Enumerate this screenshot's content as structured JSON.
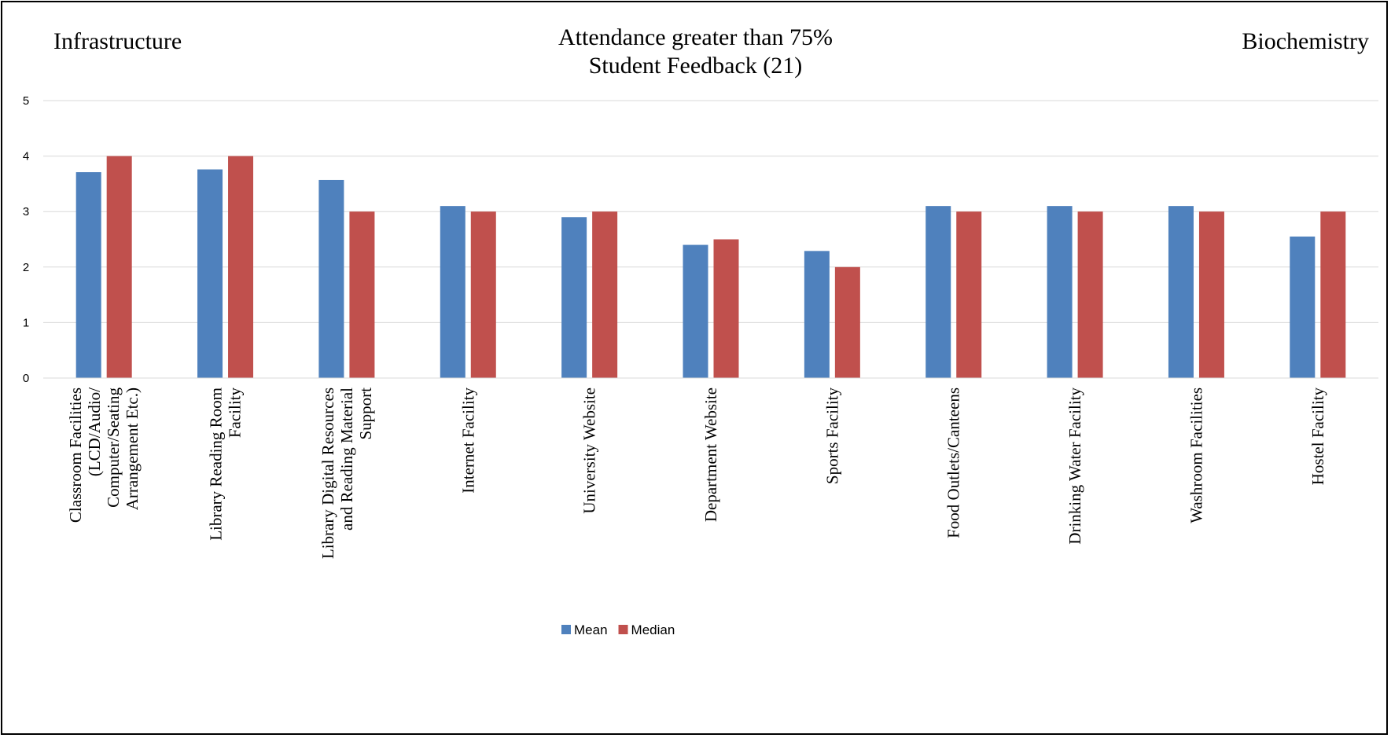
{
  "header": {
    "left_label": "Infrastructure",
    "right_label": "Biochemistry",
    "title_line1": "Attendance greater than 75%",
    "title_line2": "Student Feedback (21)"
  },
  "chart_data": {
    "type": "bar",
    "title": "Attendance greater than 75% Student Feedback (21)",
    "categories": [
      "Classroom Facilities (LCD/Audio/ Computer/Seating Arrangement Etc.)",
      "Library Reading Room Facility",
      "Library Digital Resources and Reading Material Support",
      "Internet Facility",
      "University Website",
      "Department Website",
      "Sports Facility",
      "Food Outlets/Canteens",
      "Drinking Water Facility",
      "Washroom Facilities",
      "Hostel Facility"
    ],
    "category_label_lines": [
      [
        "Classroom Facilities",
        "(LCD/Audio/",
        "Computer/Seating",
        "Arrangement Etc.)"
      ],
      [
        "Library Reading Room",
        "Facility"
      ],
      [
        "Library Digital Resources",
        "and Reading Material",
        "Support"
      ],
      [
        "Internet Facility"
      ],
      [
        "University Website"
      ],
      [
        "Department Website"
      ],
      [
        "Sports Facility"
      ],
      [
        "Food Outlets/Canteens"
      ],
      [
        "Drinking Water Facility"
      ],
      [
        "Washroom Facilities"
      ],
      [
        "Hostel Facility"
      ]
    ],
    "series": [
      {
        "name": "Mean",
        "color": "#4f81bd",
        "values": [
          3.71,
          3.76,
          3.57,
          3.1,
          2.9,
          2.4,
          2.29,
          3.1,
          3.1,
          3.1,
          2.55
        ]
      },
      {
        "name": "Median",
        "color": "#c0504d",
        "values": [
          4,
          4,
          3,
          3,
          3,
          2.5,
          2,
          3,
          3,
          3,
          3
        ]
      }
    ],
    "ylim": [
      0,
      5
    ],
    "yticks": [
      "0",
      "1",
      "2",
      "3",
      "4",
      "5"
    ],
    "grid": true,
    "legend_position": "bottom"
  }
}
